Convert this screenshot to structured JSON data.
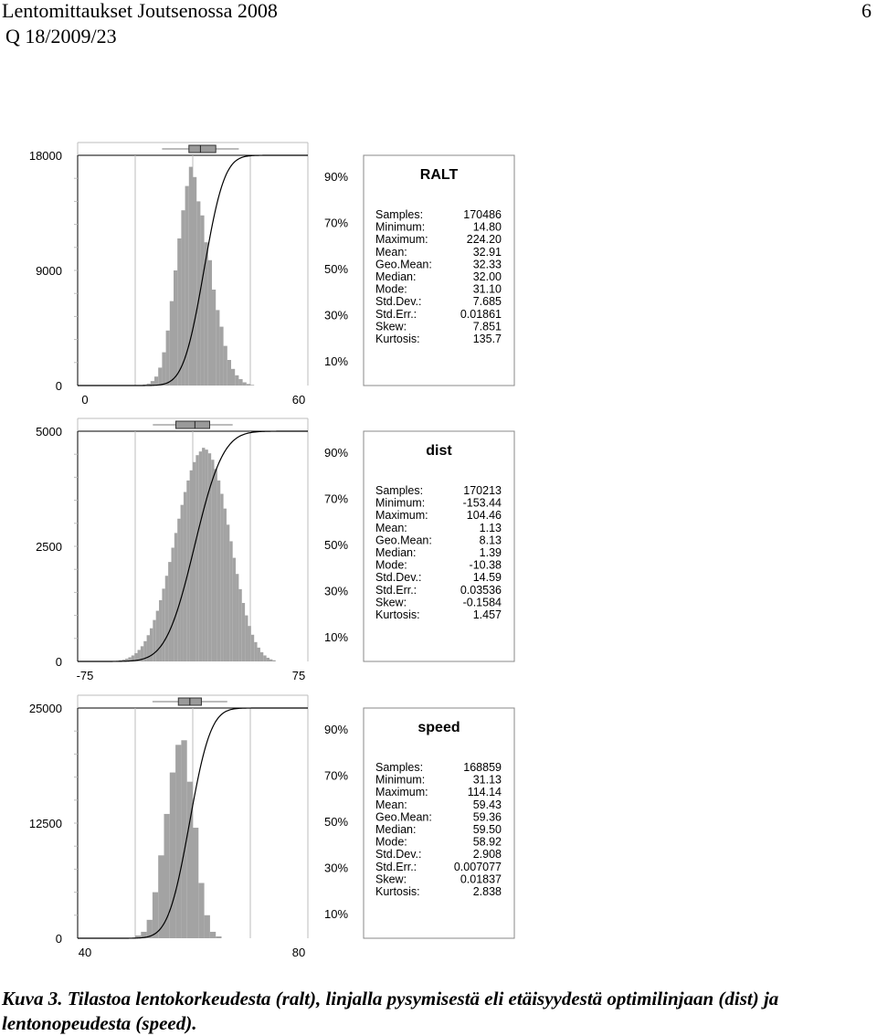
{
  "header": {
    "title": "Lentomittaukset Joutsenossa 2008",
    "page_number": "6",
    "report_id": "Q 18/2009/23"
  },
  "caption": "Kuva 3. Tilastoa lentokorkeudesta (ralt), linjalla pysymisestä eli etäisyydestä optimilinjaan (dist) ja lentonopeudesta (speed).",
  "colors": {
    "bars": "#a3a3a3",
    "curve": "#000000",
    "frame": "#000000",
    "grid": "#bdbdbd"
  },
  "chart_data": [
    {
      "type": "bar",
      "title": "RALT",
      "xlim": [
        0,
        60
      ],
      "x_ticks": [
        "0",
        "60"
      ],
      "ylim": [
        0,
        18000
      ],
      "y_ticks": [
        "18000",
        "9000",
        "0"
      ],
      "pct_ticks": [
        "90%",
        "70%",
        "50%",
        "30%",
        "10%"
      ],
      "bin_width": 1,
      "bin_start": 16,
      "values": [
        30,
        80,
        150,
        350,
        700,
        1400,
        2600,
        4300,
        6600,
        9000,
        11500,
        13700,
        15600,
        17100,
        16300,
        14400,
        13300,
        11200,
        9800,
        7500,
        5900,
        4600,
        3100,
        2000,
        1300,
        800,
        500,
        250,
        120,
        50
      ],
      "cdf_mean": 32.91,
      "cdf_sd": 4.2,
      "boxplot": {
        "q1": 29.0,
        "median": 32.0,
        "q3": 36.0,
        "whisker_low": 22.0,
        "whisker_high": 42.0
      },
      "stats": [
        [
          "Samples:",
          "170486"
        ],
        [
          "Minimum:",
          "14.80"
        ],
        [
          "Maximum:",
          "224.20"
        ],
        [
          "Mean:",
          "32.91"
        ],
        [
          "Geo.Mean:",
          "32.33"
        ],
        [
          "Median:",
          "32.00"
        ],
        [
          "Mode:",
          "31.10"
        ],
        [
          "Std.Dev.:",
          "7.685"
        ],
        [
          "Std.Err.:",
          "0.01861"
        ],
        [
          "Skew:",
          "7.851"
        ],
        [
          "Kurtosis:",
          "135.7"
        ]
      ]
    },
    {
      "type": "bar",
      "title": "dist",
      "xlim": [
        -75,
        75
      ],
      "x_ticks": [
        "-75",
        "75"
      ],
      "ylim": [
        0,
        5000
      ],
      "y_ticks": [
        "5000",
        "2500",
        "0"
      ],
      "pct_ticks": [
        "90%",
        "70%",
        "50%",
        "30%",
        "10%"
      ],
      "bin_width": 2,
      "bin_start": -50,
      "values": [
        15,
        25,
        40,
        60,
        90,
        130,
        180,
        250,
        330,
        440,
        570,
        720,
        900,
        1100,
        1330,
        1580,
        1860,
        2160,
        2470,
        2790,
        3100,
        3400,
        3680,
        3930,
        4150,
        4330,
        4480,
        4560,
        4640,
        4600,
        4520,
        4380,
        4180,
        3930,
        3640,
        3320,
        2970,
        2610,
        2250,
        1900,
        1570,
        1270,
        1000,
        770,
        580,
        420,
        300,
        200,
        130,
        80,
        45,
        25
      ],
      "cdf_mean": 1.13,
      "cdf_sd": 14.59,
      "boxplot": {
        "q1": -11.0,
        "median": 1.39,
        "q3": 11.0,
        "whisker_low": -26.0,
        "whisker_high": 26.0
      },
      "stats": [
        [
          "Samples:",
          "170213"
        ],
        [
          "Minimum:",
          "-153.44"
        ],
        [
          "Maximum:",
          "104.46"
        ],
        [
          "Mean:",
          "1.13"
        ],
        [
          "Geo.Mean:",
          "8.13"
        ],
        [
          "Median:",
          "1.39"
        ],
        [
          "Mode:",
          "-10.38"
        ],
        [
          "Std.Dev.:",
          "14.59"
        ],
        [
          "Std.Err.:",
          "0.03536"
        ],
        [
          "Skew:",
          "-0.1584"
        ],
        [
          "Kurtosis:",
          "1.457"
        ]
      ]
    },
    {
      "type": "bar",
      "title": "speed",
      "xlim": [
        40,
        80
      ],
      "x_ticks": [
        "40",
        "80"
      ],
      "ylim": [
        0,
        25000
      ],
      "y_ticks": [
        "25000",
        "12500",
        "0"
      ],
      "pct_ticks": [
        "90%",
        "70%",
        "50%",
        "30%",
        "10%"
      ],
      "bin_width": 1,
      "bin_start": 50,
      "values": [
        300,
        700,
        2000,
        5000,
        9000,
        13500,
        18000,
        21000,
        21500,
        17000,
        12000,
        6000,
        2500,
        700,
        200
      ],
      "cdf_mean": 59.43,
      "cdf_sd": 2.908,
      "boxplot": {
        "q1": 57.5,
        "median": 59.5,
        "q3": 61.5,
        "whisker_low": 53.0,
        "whisker_high": 66.0
      },
      "stats": [
        [
          "Samples:",
          "168859"
        ],
        [
          "Minimum:",
          "31.13"
        ],
        [
          "Maximum:",
          "114.14"
        ],
        [
          "Mean:",
          "59.43"
        ],
        [
          "Geo.Mean:",
          "59.36"
        ],
        [
          "Median:",
          "59.50"
        ],
        [
          "Mode:",
          "58.92"
        ],
        [
          "Std.Dev.:",
          "2.908"
        ],
        [
          "Std.Err.:",
          "0.007077"
        ],
        [
          "Skew:",
          "0.01837"
        ],
        [
          "Kurtosis:",
          "2.838"
        ]
      ]
    }
  ]
}
